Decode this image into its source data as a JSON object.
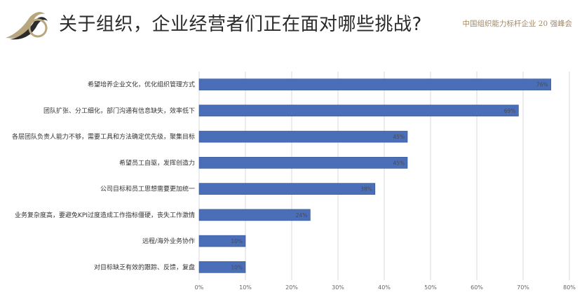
{
  "header": {
    "title": "关于组织，企业经营者们正在面对哪些挑战?",
    "subtitle": "中国组织能力标杆企业 20 强峰会"
  },
  "colors": {
    "bar": "#4a6fb8",
    "bar_edge": "#2f4f8f",
    "logo_gold": "#b8a77e",
    "logo_dark": "#2b2b2b",
    "grid": "#d9d9d9"
  },
  "chart_data": {
    "type": "bar",
    "orientation": "horizontal",
    "categories": [
      "希望培养企业文化，优化组织管理方式",
      "团队扩张、分工细化，部门沟通有信息缺失，效率低下",
      "各层团队负责人能力不够，需要工具和方法确定优先级，聚集目标",
      "希望员工自驱，发挥创造力",
      "公司目标和员工思想需要更加统一",
      "业务复杂度高，要避免KPI过度造成工作指标僵硬，丧失工作激情",
      "远程/海外业务协作",
      "对目标缺乏有效的跟踪、反馈，复盘"
    ],
    "values": [
      76,
      69,
      45,
      45,
      38,
      24,
      10,
      10
    ],
    "value_labels": [
      "76%",
      "69%",
      "45%",
      "45%",
      "38%",
      "24%",
      "10%",
      "10%"
    ],
    "xlim": [
      0,
      80
    ],
    "x_ticks": [
      "0%",
      "10%",
      "20%",
      "30%",
      "40%",
      "50%",
      "60%",
      "70%",
      "80%"
    ],
    "grid": true,
    "legend": "none"
  }
}
